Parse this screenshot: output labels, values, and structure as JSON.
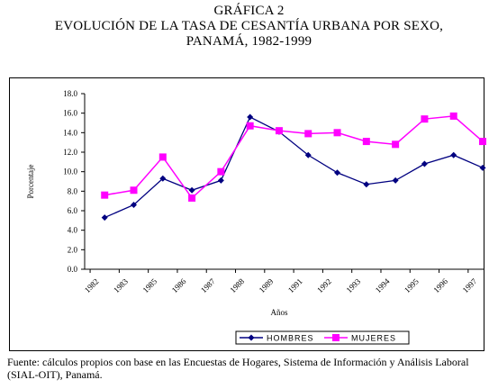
{
  "title": {
    "line1": "GRÁFICA 2",
    "line2": "EVOLUCIÓN DE LA TASA DE CESANTÍA URBANA POR SEXO,",
    "line3": "PANAMÁ, 1982-1999"
  },
  "source_text": "Fuente: cálculos propios con base en las Encuestas de Hogares, Sistema de Información y Análisis Laboral (SIAL-OIT), Panamá.",
  "chart_data": {
    "type": "line",
    "categories": [
      "1982",
      "1983",
      "1985",
      "1986",
      "1987",
      "1988",
      "1989",
      "1991",
      "1992",
      "1993",
      "1994",
      "1995",
      "1996",
      "1997"
    ],
    "series": [
      {
        "name": "HOMBRES",
        "color": "#000080",
        "marker": "diamond",
        "values": [
          5.3,
          6.6,
          9.3,
          8.1,
          9.1,
          15.6,
          14.1,
          11.7,
          9.9,
          8.7,
          9.1,
          10.8,
          11.7,
          10.4
        ]
      },
      {
        "name": "MUJERES",
        "color": "#ff00ff",
        "marker": "square",
        "values": [
          7.6,
          8.1,
          11.5,
          7.3,
          10.0,
          14.7,
          14.2,
          13.9,
          14.0,
          13.1,
          12.8,
          15.4,
          15.7,
          13.1
        ]
      }
    ],
    "ylim": [
      0,
      18
    ],
    "ytick_step": 2,
    "ytick_labels": [
      "0.0",
      "2.0",
      "4.0",
      "6.0",
      "8.0",
      "10.0",
      "12.0",
      "14.0",
      "16.0",
      "18.0"
    ],
    "xlabel": "Años",
    "ylabel": "Porcentaje",
    "legend_position": "bottom",
    "grid": false
  }
}
